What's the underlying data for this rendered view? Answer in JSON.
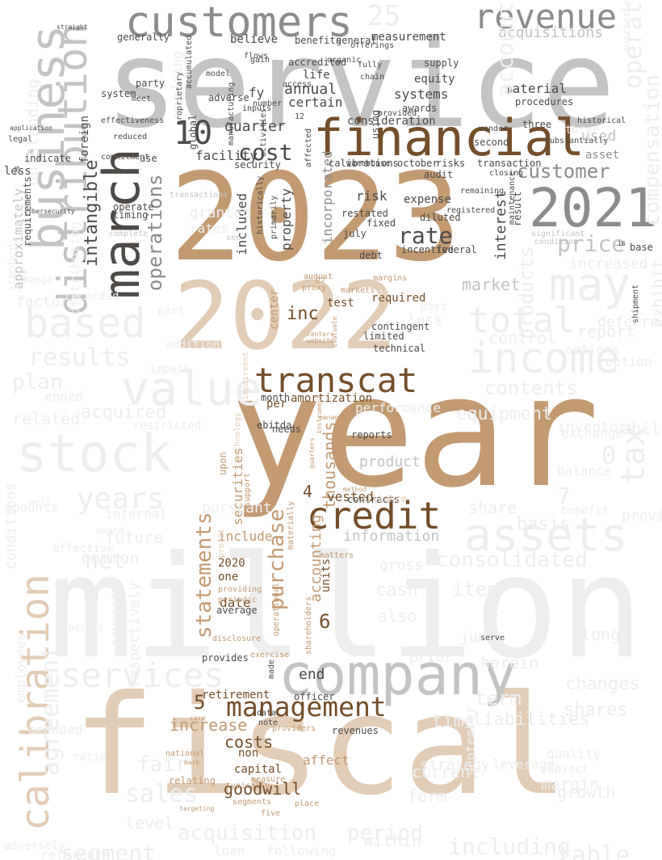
{
  "palette": {
    "dark": "#4e4a47",
    "gray": "#8c8c8c",
    "silver": "#c4c4c4",
    "faint": "#eeeeee",
    "brown": "#744e29",
    "tan": "#c39a72",
    "beige": "#e3cdb7",
    "lightbeige": "#e9dccf"
  },
  "words": [
    {
      "text": "service",
      "c": "silver"
    },
    {
      "text": "year",
      "c": "tan"
    },
    {
      "text": "million",
      "c": "faint"
    },
    {
      "text": "fiscal",
      "c": "beige"
    },
    {
      "text": "2023",
      "c": "tan"
    },
    {
      "text": "2022",
      "c": "beige"
    },
    {
      "text": "company",
      "c": "silver"
    },
    {
      "text": "customers",
      "c": "gray"
    },
    {
      "text": "business",
      "c": "silver"
    },
    {
      "text": "march",
      "c": "dark"
    },
    {
      "text": "financial",
      "c": "brown"
    },
    {
      "text": "transcat",
      "c": "brown"
    },
    {
      "text": "credit",
      "c": "brown"
    },
    {
      "text": "calibration",
      "c": "beige"
    },
    {
      "text": "distribution",
      "c": "silver"
    },
    {
      "text": "2021",
      "c": "gray"
    },
    {
      "text": "revenue",
      "c": "gray"
    },
    {
      "text": "management",
      "c": "brown"
    },
    {
      "text": "income",
      "c": "faint"
    },
    {
      "text": "stock",
      "c": "faint"
    },
    {
      "text": "value",
      "c": "faint"
    },
    {
      "text": "assets",
      "c": "faint"
    },
    {
      "text": "based",
      "c": "faint"
    },
    {
      "text": "services",
      "c": "faint"
    },
    {
      "text": "may",
      "c": "faint"
    },
    {
      "text": "total",
      "c": "faint"
    },
    {
      "text": "tax",
      "c": "faint"
    },
    {
      "text": "statements",
      "c": "tan"
    },
    {
      "text": "purchase",
      "c": "tan"
    },
    {
      "text": "cost",
      "c": "dark"
    },
    {
      "text": "10",
      "c": "dark"
    },
    {
      "text": "customer",
      "c": "gray"
    },
    {
      "text": "rate",
      "c": "dark"
    },
    {
      "text": "price",
      "c": "silver"
    },
    {
      "text": "operations",
      "c": "gray"
    },
    {
      "text": "intangible",
      "c": "dark"
    },
    {
      "text": "consolidated",
      "c": "faint"
    },
    {
      "text": "acquisition",
      "c": "faint"
    },
    {
      "text": "period",
      "c": "faint"
    },
    {
      "text": "years",
      "c": "faint"
    },
    {
      "text": "results",
      "c": "faint"
    },
    {
      "text": "25",
      "c": "faint"
    },
    {
      "text": "acquisitions",
      "c": "silver"
    },
    {
      "text": "inc",
      "c": "brown"
    },
    {
      "text": "goodwill",
      "c": "brown"
    },
    {
      "text": "increase",
      "c": "tan"
    },
    {
      "text": "costs",
      "c": "brown"
    },
    {
      "text": "6",
      "c": "brown"
    },
    {
      "text": "5",
      "c": "brown"
    },
    {
      "text": "quarter",
      "c": "dark"
    },
    {
      "text": "annual",
      "c": "dark"
    },
    {
      "text": "certain",
      "c": "dark"
    },
    {
      "text": "included",
      "c": "dark"
    },
    {
      "text": "property",
      "c": "dark"
    },
    {
      "text": "incorporated",
      "c": "gray"
    },
    {
      "text": "risk",
      "c": "dark"
    },
    {
      "text": "expense",
      "c": "dark"
    },
    {
      "text": "interest",
      "c": "dark"
    },
    {
      "text": "consideration",
      "c": "dark"
    },
    {
      "text": "systems",
      "c": "dark"
    },
    {
      "text": "equity",
      "c": "dark"
    },
    {
      "text": "life",
      "c": "dark"
    },
    {
      "text": "fy",
      "c": "dark"
    },
    {
      "text": "facility",
      "c": "dark"
    },
    {
      "text": "believe",
      "c": "dark"
    },
    {
      "text": "measurement",
      "c": "dark"
    },
    {
      "text": "material",
      "c": "dark"
    },
    {
      "text": "used",
      "c": "silver"
    },
    {
      "text": "market",
      "c": "silver"
    },
    {
      "text": "accounting",
      "c": "tan"
    },
    {
      "text": "thousands",
      "c": "tan"
    },
    {
      "text": "product",
      "c": "silver"
    },
    {
      "text": "information",
      "c": "silver"
    },
    {
      "text": "securities",
      "c": "tan"
    },
    {
      "text": "include",
      "c": "tan"
    },
    {
      "text": "date",
      "c": "brown"
    },
    {
      "text": "2020",
      "c": "brown"
    },
    {
      "text": "one",
      "c": "brown"
    },
    {
      "text": "units",
      "c": "brown"
    },
    {
      "text": "end",
      "c": "dark"
    },
    {
      "text": "retirement",
      "c": "brown"
    },
    {
      "text": "non",
      "c": "brown"
    },
    {
      "text": "capital",
      "c": "brown"
    },
    {
      "text": "affect",
      "c": "tan"
    },
    {
      "text": "required",
      "c": "brown"
    },
    {
      "text": "test",
      "c": "brown"
    },
    {
      "text": "amortization",
      "c": "brown"
    },
    {
      "text": "vested",
      "c": "brown"
    },
    {
      "text": "4",
      "c": "brown"
    },
    {
      "text": "per",
      "c": "brown"
    },
    {
      "text": "center",
      "c": "tan"
    },
    {
      "text": "operating",
      "c": "faint"
    },
    {
      "text": "accounts",
      "c": "faint"
    },
    {
      "text": "products",
      "c": "faint"
    },
    {
      "text": "compensation",
      "c": "faint"
    },
    {
      "text": "contents",
      "c": "faint"
    },
    {
      "text": "equipment",
      "c": "faint"
    },
    {
      "text": "control",
      "c": "faint"
    },
    {
      "text": "report",
      "c": "faint"
    },
    {
      "text": "increased",
      "c": "faint"
    },
    {
      "text": "outstanding",
      "c": "faint"
    },
    {
      "text": "segment",
      "c": "faint"
    },
    {
      "text": "sales",
      "c": "faint"
    },
    {
      "text": "agreement",
      "c": "faint"
    },
    {
      "text": "fair",
      "c": "faint"
    },
    {
      "text": "net",
      "c": "faint"
    },
    {
      "text": "common",
      "c": "faint"
    },
    {
      "text": "future",
      "c": "faint"
    },
    {
      "text": "plan",
      "c": "faint"
    },
    {
      "text": "related",
      "c": "faint"
    },
    {
      "text": "acquired",
      "c": "faint"
    },
    {
      "text": "ended",
      "c": "faint"
    },
    {
      "text": "factors",
      "c": "faint"
    },
    {
      "text": "including",
      "c": "faint"
    },
    {
      "text": "table",
      "c": "faint"
    },
    {
      "text": "current",
      "c": "faint"
    },
    {
      "text": "form",
      "c": "faint"
    },
    {
      "text": "time",
      "c": "faint"
    },
    {
      "text": "liabilities",
      "c": "faint"
    },
    {
      "text": "term",
      "c": "faint"
    },
    {
      "text": "shares",
      "c": "faint"
    },
    {
      "text": "changes",
      "c": "faint"
    },
    {
      "text": "cash",
      "c": "faint"
    },
    {
      "text": "item",
      "c": "faint"
    },
    {
      "text": "also",
      "c": "faint"
    },
    {
      "text": "share",
      "c": "faint"
    },
    {
      "text": "basis",
      "c": "faint"
    },
    {
      "text": "inventory",
      "c": "faint"
    },
    {
      "text": "exchange",
      "c": "faint"
    },
    {
      "text": "0",
      "c": "faint"
    },
    {
      "text": "2",
      "c": "faint"
    },
    {
      "text": "7",
      "c": "faint"
    },
    {
      "text": "loss",
      "c": "faint"
    },
    {
      "text": "gross",
      "c": "faint"
    },
    {
      "text": "margin",
      "c": "faint"
    },
    {
      "text": "growth",
      "c": "faint"
    },
    {
      "text": "september",
      "c": "faint"
    },
    {
      "text": "pursuant",
      "c": "faint"
    },
    {
      "text": "granted",
      "c": "faint"
    },
    {
      "text": "rates",
      "c": "faint"
    },
    {
      "text": "option",
      "c": "faint"
    },
    {
      "text": "options",
      "c": "faint"
    },
    {
      "text": "deferred",
      "c": "faint"
    },
    {
      "text": "respectively",
      "c": "faint"
    },
    {
      "text": "employees",
      "c": "faint"
    },
    {
      "text": "conditions",
      "c": "faint"
    },
    {
      "text": "amounts",
      "c": "faint"
    },
    {
      "text": "restricted",
      "c": "faint"
    },
    {
      "text": "impact",
      "c": "faint"
    },
    {
      "text": "payments",
      "c": "faint"
    },
    {
      "text": "revolving",
      "c": "faint"
    },
    {
      "text": "distribution",
      "c": "faint"
    },
    {
      "text": "revenues",
      "c": "dark"
    },
    {
      "text": "note",
      "c": "dark"
    },
    {
      "text": "data",
      "c": "dark"
    },
    {
      "text": "officer",
      "c": "dark"
    },
    {
      "text": "provides",
      "c": "dark"
    },
    {
      "text": "average",
      "c": "dark"
    },
    {
      "text": "made",
      "c": "dark"
    },
    {
      "text": "reports",
      "c": "dark"
    },
    {
      "text": "contracts",
      "c": "dark"
    },
    {
      "text": "technical",
      "c": "dark"
    },
    {
      "text": "limited",
      "c": "dark"
    },
    {
      "text": "contingent",
      "c": "dark"
    },
    {
      "text": "debt",
      "c": "dark"
    },
    {
      "text": "incentive",
      "c": "dark"
    },
    {
      "text": "federal",
      "c": "dark"
    },
    {
      "text": "diluted",
      "c": "dark"
    },
    {
      "text": "fixed",
      "c": "dark"
    },
    {
      "text": "restated",
      "c": "dark"
    },
    {
      "text": "july",
      "c": "dark"
    },
    {
      "text": "warehouse",
      "c": "dark"
    },
    {
      "text": "second",
      "c": "dark"
    },
    {
      "text": "three",
      "c": "dark"
    },
    {
      "text": "asset",
      "c": "gray"
    },
    {
      "text": "result",
      "c": "dark"
    },
    {
      "text": "audit",
      "c": "dark"
    },
    {
      "text": "october",
      "c": "dark"
    },
    {
      "text": "risks",
      "c": "dark"
    },
    {
      "text": "transaction",
      "c": "dark"
    },
    {
      "text": "calibrations",
      "c": "dark"
    },
    {
      "text": "using",
      "c": "dark"
    },
    {
      "text": "awards",
      "c": "dark"
    },
    {
      "text": "provided",
      "c": "dark"
    },
    {
      "text": "procedures",
      "c": "dark"
    },
    {
      "text": "supply",
      "c": "dark"
    },
    {
      "text": "accredited",
      "c": "dark"
    },
    {
      "text": "adverse",
      "c": "dark"
    },
    {
      "text": "generally",
      "c": "dark"
    },
    {
      "text": "benefits",
      "c": "dark"
    },
    {
      "text": "general",
      "c": "dark"
    },
    {
      "text": "system",
      "c": "dark"
    },
    {
      "text": "security",
      "c": "dark"
    },
    {
      "text": "global",
      "c": "dark"
    },
    {
      "text": "timing",
      "c": "dark"
    },
    {
      "text": "operate",
      "c": "dark"
    },
    {
      "text": "foreign",
      "c": "dark"
    },
    {
      "text": "party",
      "c": "dark"
    },
    {
      "text": "ebitda",
      "c": "dark"
    },
    {
      "text": "month",
      "c": "dark"
    },
    {
      "text": "needs",
      "c": "dark"
    },
    {
      "text": "upon",
      "c": "tan"
    },
    {
      "text": "support",
      "c": "tan"
    },
    {
      "text": "proxy",
      "c": "tan"
    },
    {
      "text": "markets",
      "c": "tan"
    },
    {
      "text": "27",
      "c": "tan"
    },
    {
      "text": "august",
      "c": "tan"
    },
    {
      "text": "margins",
      "c": "tan"
    },
    {
      "text": "national",
      "c": "tan"
    },
    {
      "text": "relating",
      "c": "tan"
    },
    {
      "text": "typically",
      "c": "tan"
    },
    {
      "text": "segments",
      "c": "tan"
    },
    {
      "text": "five",
      "c": "tan"
    },
    {
      "text": "measure",
      "c": "tan"
    },
    {
      "text": "place",
      "c": "tan"
    },
    {
      "text": "providers",
      "c": "tan"
    },
    {
      "text": "exercise",
      "c": "tan"
    },
    {
      "text": "disclosure",
      "c": "tan"
    },
    {
      "text": "providing",
      "c": "tan"
    },
    {
      "text": "periodic",
      "c": "tan"
    },
    {
      "text": "shareholders",
      "c": "tan"
    },
    {
      "text": "operational",
      "c": "tan"
    },
    {
      "text": "matters",
      "c": "tan"
    },
    {
      "text": "materially",
      "c": "tan"
    },
    {
      "text": "technology",
      "c": "beige"
    },
    {
      "text": "impairment",
      "c": "beige"
    },
    {
      "text": "alliance",
      "c": "beige"
    },
    {
      "text": "profit",
      "c": "beige"
    },
    {
      "text": "approximately",
      "c": "silver"
    },
    {
      "text": "requirements",
      "c": "dark"
    },
    {
      "text": "less",
      "c": "dark"
    },
    {
      "text": "indicate",
      "c": "dark"
    },
    {
      "text": "legal",
      "c": "dark"
    },
    {
      "text": "effectiveness",
      "c": "dark"
    },
    {
      "text": "reduced",
      "c": "dark"
    },
    {
      "text": "commitment",
      "c": "dark"
    },
    {
      "text": "use",
      "c": "dark"
    },
    {
      "text": "meet",
      "c": "dark"
    },
    {
      "text": "model",
      "c": "dark"
    },
    {
      "text": "flows",
      "c": "dark"
    },
    {
      "text": "gain",
      "c": "dark"
    },
    {
      "text": "organic",
      "c": "dark"
    },
    {
      "text": "offerings",
      "c": "dark"
    },
    {
      "text": "fully",
      "c": "dark"
    },
    {
      "text": "chain",
      "c": "dark"
    },
    {
      "text": "access",
      "c": "dark"
    },
    {
      "text": "inputs",
      "c": "dark"
    },
    {
      "text": "12",
      "c": "dark"
    },
    {
      "text": "number",
      "c": "dark"
    },
    {
      "text": "vendor",
      "c": "dark"
    },
    {
      "text": "historical",
      "c": "dark"
    },
    {
      "text": "substantially",
      "c": "dark"
    },
    {
      "text": "closing",
      "c": "dark"
    },
    {
      "text": "remaining",
      "c": "dark"
    },
    {
      "text": "registered",
      "c": "dark"
    },
    {
      "text": "primarily",
      "c": "dark"
    },
    {
      "text": "activities",
      "c": "dark"
    },
    {
      "text": "affected",
      "c": "dark"
    },
    {
      "text": "manufacturing",
      "c": "dark"
    },
    {
      "text": "proprietary",
      "c": "dark"
    },
    {
      "text": "accumulated",
      "c": "dark"
    },
    {
      "text": "historically",
      "c": "dark"
    },
    {
      "text": "transactions",
      "c": "silver"
    },
    {
      "text": "complete",
      "c": "silver"
    },
    {
      "text": "see",
      "c": "silver"
    },
    {
      "text": "significant",
      "c": "silver"
    },
    {
      "text": "condition",
      "c": "silver"
    },
    {
      "text": "maintenance",
      "c": "dark"
    },
    {
      "text": "base",
      "c": "dark"
    },
    {
      "text": "16",
      "c": "dark"
    },
    {
      "text": "shipment",
      "c": "dark"
    },
    {
      "text": "exhibit",
      "c": "faint"
    },
    {
      "text": "quarterly",
      "c": "faint"
    },
    {
      "text": "ability",
      "c": "faint"
    },
    {
      "text": "balance",
      "c": "faint"
    },
    {
      "text": "benefit",
      "c": "faint"
    },
    {
      "text": "provide",
      "c": "faint"
    },
    {
      "text": "long",
      "c": "faint"
    },
    {
      "text": "june",
      "c": "faint"
    },
    {
      "text": "prior",
      "c": "faint"
    },
    {
      "text": "herein",
      "c": "faint"
    },
    {
      "text": "strategy",
      "c": "faint"
    },
    {
      "text": "leverage",
      "c": "faint"
    },
    {
      "text": "subject",
      "c": "faint"
    },
    {
      "text": "quality",
      "c": "faint"
    },
    {
      "text": "level",
      "c": "faint"
    },
    {
      "text": "within",
      "c": "faint"
    },
    {
      "text": "loan",
      "c": "faint"
    },
    {
      "text": "following",
      "c": "faint"
    },
    {
      "text": "reference",
      "c": "faint"
    },
    {
      "text": "adversely",
      "c": "faint"
    },
    {
      "text": "amended",
      "c": "faint"
    },
    {
      "text": "ratio",
      "c": "faint"
    },
    {
      "text": "post",
      "c": "faint"
    },
    {
      "text": "performance",
      "c": "faint"
    },
    {
      "text": "addition",
      "c": "faint"
    },
    {
      "text": "internal",
      "c": "faint"
    },
    {
      "text": "award",
      "c": "faint"
    },
    {
      "text": "effective",
      "c": "faint"
    },
    {
      "text": "expected",
      "c": "faint"
    },
    {
      "text": "standards",
      "c": "faint"
    },
    {
      "text": "change",
      "c": "faint"
    },
    {
      "text": "recorded",
      "c": "faint"
    },
    {
      "text": "part",
      "c": "faint"
    },
    {
      "text": "well",
      "c": "faint"
    },
    {
      "text": "27",
      "c": "faint"
    },
    {
      "text": "serve",
      "c": "dark"
    },
    {
      "text": "three",
      "c": "faint"
    },
    {
      "text": "24",
      "c": "dark"
    },
    {
      "text": "cybersecurity",
      "c": "dark"
    },
    {
      "text": "application",
      "c": "dark"
    },
    {
      "text": "straight",
      "c": "dark"
    },
    {
      "text": "website",
      "c": "tan"
    },
    {
      "text": "centers",
      "c": "tan"
    },
    {
      "text": "evaluate",
      "c": "tan"
    },
    {
      "text": "method",
      "c": "tan"
    },
    {
      "text": "quarters",
      "c": "tan"
    },
    {
      "text": "instrument",
      "c": "tan"
    },
    {
      "text": "manage",
      "c": "tan"
    },
    {
      "text": "care",
      "c": "tan"
    },
    {
      "text": "mark",
      "c": "tan"
    },
    {
      "text": "targeting",
      "c": "tan"
    }
  ]
}
